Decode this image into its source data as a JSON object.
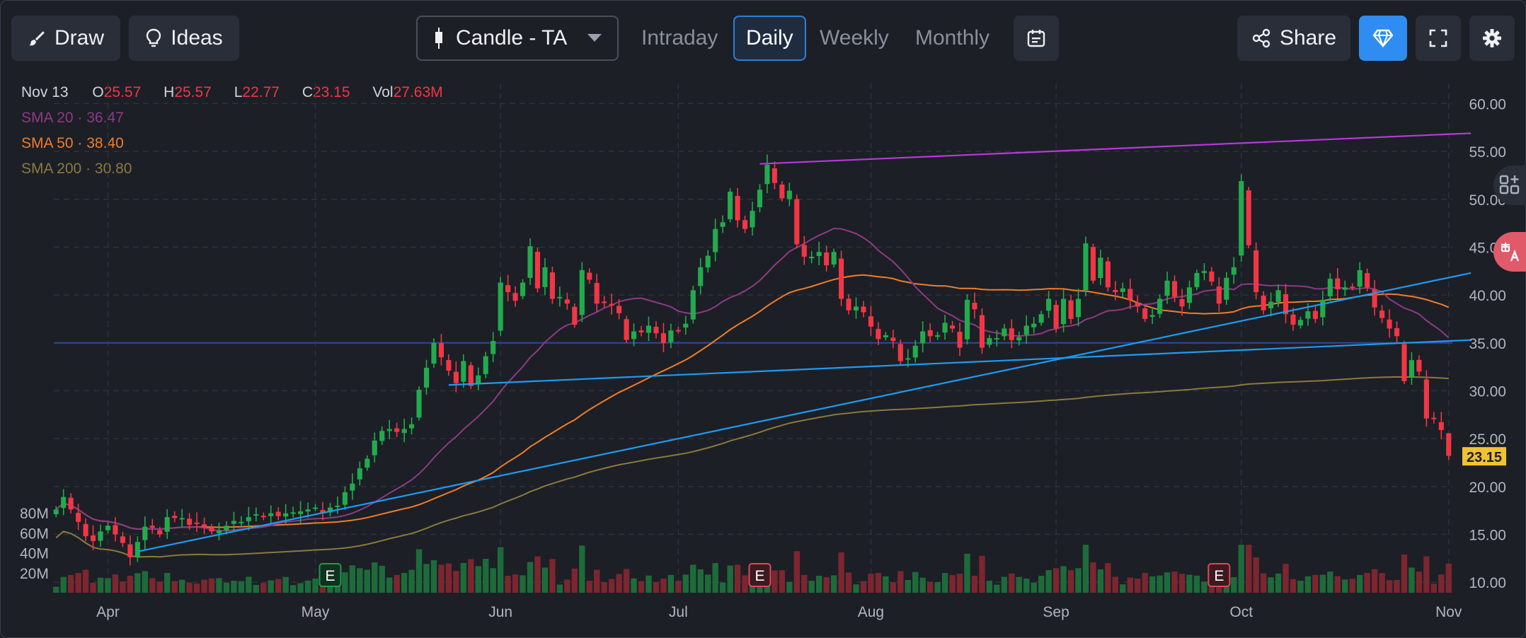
{
  "toolbar": {
    "draw_label": "Draw",
    "ideas_label": "Ideas",
    "chart_type": "Candle - TA",
    "timeframes": [
      "Intraday",
      "Daily",
      "Weekly",
      "Monthly"
    ],
    "active_timeframe": "Daily",
    "share_label": "Share"
  },
  "ohlc": {
    "date": "Nov 13",
    "o_label": "O",
    "o_value": "25.57",
    "h_label": "H",
    "h_value": "25.57",
    "l_label": "L",
    "l_value": "22.77",
    "c_label": "C",
    "c_value": "23.15",
    "vol_label": "Vol",
    "vol_value": "27.63M"
  },
  "sma": [
    {
      "label": "SMA 20",
      "value": "36.47",
      "color": "#8e3a84"
    },
    {
      "label": "SMA 50",
      "value": "38.40",
      "color": "#f07d28"
    },
    {
      "label": "SMA 200",
      "value": "30.80",
      "color": "#8a7a3e"
    }
  ],
  "colors": {
    "up": "#22ab4d",
    "down": "#f23645",
    "vol_up": "#1d6b3a",
    "vol_down": "#7c2630",
    "accent": "#2f8cf0",
    "last_price_bg": "#f2c230"
  },
  "chart_data": {
    "type": "candlestick",
    "title": "Candle - TA",
    "x_labels": [
      "Apr",
      "May",
      "Jun",
      "Jul",
      "Aug",
      "Sep",
      "Oct",
      "Nov"
    ],
    "y_ticks": [
      "60.00",
      "55.00",
      "50.00",
      "45.00",
      "40.00",
      "35.00",
      "30.00",
      "25.00",
      "20.00",
      "15.00",
      "10.00"
    ],
    "ylim": [
      8.9,
      62.1
    ],
    "vol_ticks": [
      "80M",
      "60M",
      "40M",
      "20M"
    ],
    "last_price": "23.15",
    "earnings_marker": "E",
    "earnings_dates_index": [
      37,
      95,
      157
    ],
    "closes": [
      17.6,
      18.9,
      17.6,
      16.3,
      14.8,
      14.3,
      15.3,
      15.9,
      15.0,
      14.1,
      12.6,
      14.2,
      15.8,
      15.7,
      15.0,
      16.8,
      16.7,
      16.7,
      16.0,
      16.2,
      15.7,
      15.3,
      15.4,
      15.9,
      16.4,
      16.3,
      16.8,
      17.1,
      16.8,
      17.2,
      16.9,
      17.2,
      17.3,
      17.4,
      17.6,
      17.8,
      17.2,
      17.8,
      18.0,
      19.4,
      20.3,
      21.9,
      22.9,
      24.8,
      25.8,
      26.0,
      25.7,
      26.0,
      26.5,
      30.1,
      32.4,
      35.0,
      33.5,
      32.1,
      30.8,
      33.1,
      30.5,
      31.6,
      33.6,
      35.2,
      41.3,
      40.3,
      39.4,
      41.3,
      45.1,
      40.7,
      42.9,
      39.6,
      39.8,
      39.1,
      36.9,
      42.6,
      41.6,
      39.1,
      39.2,
      38.9,
      38.1,
      35.3,
      36.2,
      36.1,
      36.8,
      36.0,
      35.0,
      36.3,
      36.3,
      37.0,
      40.5,
      42.9,
      44.1,
      46.9,
      47.6,
      50.8,
      47.8,
      46.9,
      48.8,
      51.0,
      53.6,
      51.7,
      50.1,
      50.9,
      45.3,
      44.0,
      44.0,
      44.5,
      43.1,
      44.5,
      39.6,
      38.4,
      38.8,
      38.2,
      36.7,
      35.4,
      35.8,
      35.2,
      33.1,
      33.4,
      34.7,
      36.2,
      35.7,
      35.8,
      37.1,
      36.5,
      34.5,
      39.5,
      38.5,
      34.5,
      35.5,
      35.5,
      36.5,
      35.3,
      35.6,
      36.8,
      37.0,
      38.0,
      39.6,
      36.5,
      39.6,
      37.5,
      39.6,
      45.4,
      41.5,
      43.9,
      40.8,
      40.3,
      40.7,
      39.5,
      38.8,
      37.5,
      37.9,
      39.6,
      41.5,
      39.8,
      38.8,
      40.8,
      42.3,
      42.5,
      41.4,
      39.1,
      41.8,
      42.9,
      51.9,
      45.2,
      40.3,
      38.4,
      39.3,
      40.5,
      38.0,
      36.9,
      37.4,
      38.3,
      37.5,
      39.5,
      41.7,
      40.6,
      40.8,
      40.8,
      42.6,
      40.8,
      38.7,
      37.6,
      36.5,
      35.7,
      31.0,
      33.2,
      32.0,
      27.1,
      27.1,
      25.9,
      23.2
    ]
  }
}
